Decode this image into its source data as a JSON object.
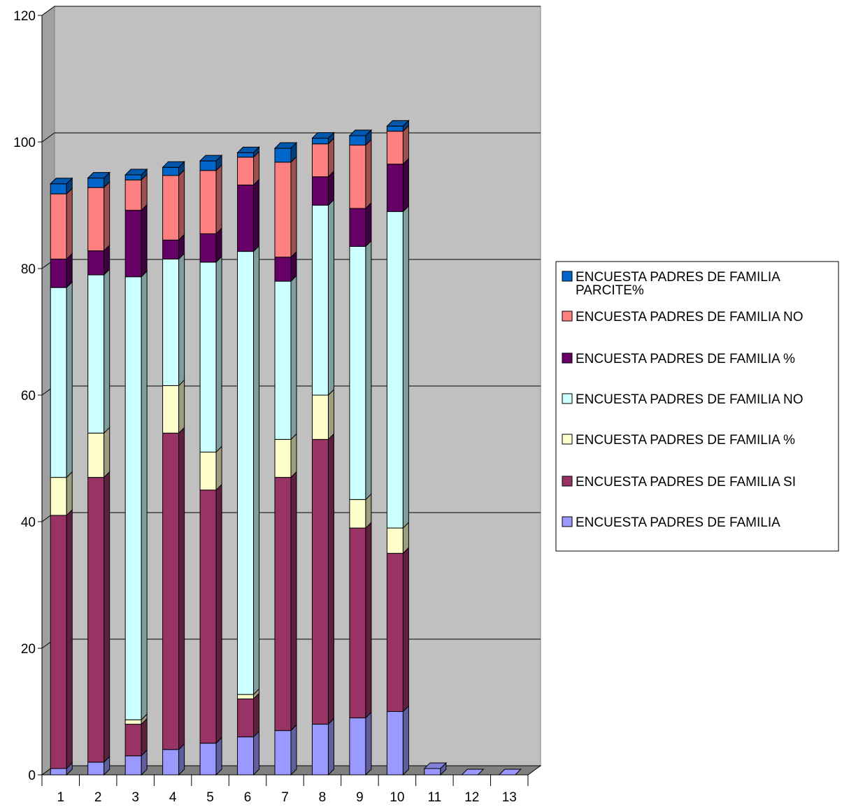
{
  "chart_data": {
    "type": "bar",
    "stacked": true,
    "three_d": true,
    "categories": [
      "1",
      "2",
      "3",
      "4",
      "5",
      "6",
      "7",
      "8",
      "9",
      "10",
      "11",
      "12",
      "13"
    ],
    "ylim": [
      0,
      120
    ],
    "yticks": [
      "0",
      "20",
      "40",
      "60",
      "80",
      "100",
      "120"
    ],
    "grid": true,
    "legend_position": "right",
    "title": "",
    "xlabel": "",
    "ylabel": "",
    "series": [
      {
        "name": "ENCUESTA PADRES DE FAMILIA",
        "color": "#9999FF",
        "values": [
          1,
          2,
          3,
          4,
          5,
          6,
          7,
          8,
          9,
          10,
          1,
          0,
          0
        ]
      },
      {
        "name": "ENCUESTA PADRES DE FAMILIA SI",
        "color": "#993366",
        "values": [
          40,
          45,
          5,
          50,
          40,
          6,
          40,
          45,
          30,
          25,
          0,
          0,
          0
        ]
      },
      {
        "name": "ENCUESTA PADRES DE FAMILIA %",
        "color": "#FFFFCC",
        "values": [
          6,
          7,
          0.7,
          7.5,
          6,
          0.7,
          6,
          7,
          4.5,
          4,
          0,
          0,
          0
        ]
      },
      {
        "name": "ENCUESTA PADRES DE FAMILIA NO",
        "color": "#CCFFFF",
        "values": [
          30,
          25,
          70,
          20,
          30,
          70,
          25,
          30,
          40,
          50,
          0,
          0,
          0
        ]
      },
      {
        "name": "ENCUESTA PADRES DE FAMILIA %",
        "color": "#660066",
        "values": [
          4.5,
          3.8,
          10.5,
          3,
          4.5,
          10.5,
          3.8,
          4.5,
          6,
          7.5,
          0,
          0,
          0
        ]
      },
      {
        "name": "ENCUESTA PADRES DE FAMILIA NO",
        "color": "#FF8080",
        "values": [
          10.3,
          10,
          4.8,
          10.2,
          10,
          4.4,
          15,
          5.2,
          10,
          5.2,
          0,
          0,
          0
        ]
      },
      {
        "name": "ENCUESTA PADRES DE FAMILIA PARCITE%",
        "color": "#0066CC",
        "values": [
          1.6,
          1.5,
          0.8,
          1.3,
          1.5,
          0.7,
          2.2,
          0.9,
          1.5,
          0.8,
          0,
          0,
          0
        ]
      }
    ],
    "legend": [
      {
        "lines": [
          "ENCUESTA PADRES DE FAMILIA",
          "PARCITE%"
        ],
        "color": "#0066CC"
      },
      {
        "lines": [
          "ENCUESTA PADRES DE FAMILIA NO"
        ],
        "color": "#FF8080"
      },
      {
        "lines": [
          "ENCUESTA PADRES DE FAMILIA %"
        ],
        "color": "#660066"
      },
      {
        "lines": [
          "ENCUESTA PADRES DE FAMILIA NO"
        ],
        "color": "#CCFFFF"
      },
      {
        "lines": [
          "ENCUESTA PADRES DE FAMILIA %"
        ],
        "color": "#FFFFCC"
      },
      {
        "lines": [
          "ENCUESTA PADRES DE FAMILIA SI"
        ],
        "color": "#993366"
      },
      {
        "lines": [
          "ENCUESTA PADRES DE FAMILIA"
        ],
        "color": "#9999FF"
      }
    ],
    "colors": {
      "plot_back": "#C0C0C0",
      "plot_side": "#A0A0A0",
      "plot_floor": "#808080",
      "gridline": "#000000"
    }
  }
}
